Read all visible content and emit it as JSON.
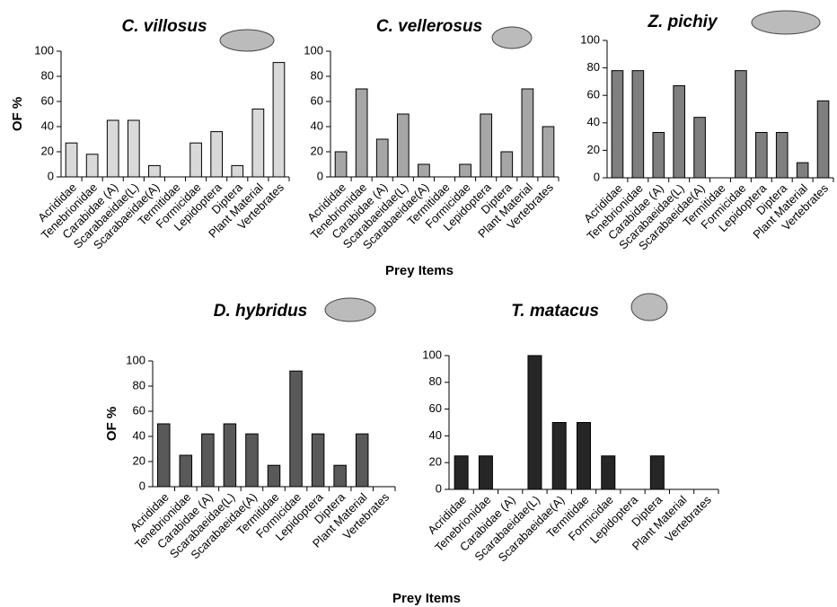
{
  "chart_data": [
    {
      "type": "bar",
      "title": "C. villosus",
      "ylabel": "OF %",
      "categories": [
        "Acrididae",
        "Tenebrionidae",
        "Carabidae (A)",
        "Scarabaeidae(L)",
        "Scarabaeidae(A)",
        "Termitidae",
        "Formicidae",
        "Lepidoptera",
        "Diptera",
        "Plant Material",
        "Vertebrates"
      ],
      "values": [
        27,
        18,
        45,
        45,
        9,
        0,
        27,
        36,
        9,
        54,
        91
      ],
      "color": "#d9d9d9",
      "ylim": [
        0,
        100
      ],
      "yticks": [
        0,
        20,
        40,
        60,
        80,
        100
      ]
    },
    {
      "type": "bar",
      "title": "C. vellerosus",
      "xlabel": "Prey Items",
      "categories": [
        "Acrididae",
        "Tenebrionidae",
        "Carabidae (A)",
        "Scarabaeidae(L)",
        "Scarabaeidae(A)",
        "Termitidae",
        "Formicidae",
        "Lepidoptera",
        "Diptera",
        "Plant Material",
        "Vertebrates"
      ],
      "values": [
        20,
        70,
        30,
        50,
        10,
        0,
        10,
        50,
        20,
        70,
        40
      ],
      "color": "#a6a6a6",
      "ylim": [
        0,
        100
      ],
      "yticks": [
        0,
        20,
        40,
        60,
        80,
        100
      ]
    },
    {
      "type": "bar",
      "title": "Z. pichiy",
      "categories": [
        "Acrididae",
        "Tenebrionidae",
        "Carabidae (A)",
        "Scarabaeidae(L)",
        "Scarabaeidae(A)",
        "Termitidae",
        "Formicidae",
        "Lepidoptera",
        "Diptera",
        "Plant Material",
        "Vertebrates"
      ],
      "values": [
        78,
        78,
        33,
        67,
        44,
        0,
        78,
        33,
        33,
        11,
        56
      ],
      "color": "#7f7f7f",
      "ylim": [
        0,
        100
      ],
      "yticks": [
        0,
        20,
        40,
        60,
        80,
        100
      ]
    },
    {
      "type": "bar",
      "title": "D. hybridus",
      "ylabel": "OF %",
      "categories": [
        "Acrididae",
        "Tenebrionidae",
        "Carabidae (A)",
        "Scarabaeidae(L)",
        "Scarabaeidae(A)",
        "Termitidae",
        "Formicidae",
        "Lepidoptera",
        "Diptera",
        "Plant Material",
        "Vertebrates"
      ],
      "values": [
        50,
        25,
        42,
        50,
        42,
        17,
        92,
        42,
        17,
        42,
        0
      ],
      "color": "#595959",
      "ylim": [
        0,
        100
      ],
      "yticks": [
        0,
        20,
        40,
        60,
        80,
        100
      ]
    },
    {
      "type": "bar",
      "title": "T. matacus",
      "xlabel": "Prey Items",
      "categories": [
        "Acrididae",
        "Tenebrionidae",
        "Carabidae (A)",
        "Scarabaeidae(L)",
        "Scarabaeidae(A)",
        "Termitidae",
        "Formicidae",
        "Lepidoptera",
        "Diptera",
        "Plant Material",
        "Vertebrates"
      ],
      "values": [
        25,
        25,
        0,
        100,
        50,
        50,
        25,
        0,
        25,
        0,
        0
      ],
      "color": "#262626",
      "ylim": [
        0,
        100
      ],
      "yticks": [
        0,
        20,
        40,
        60,
        80,
        100
      ]
    }
  ]
}
